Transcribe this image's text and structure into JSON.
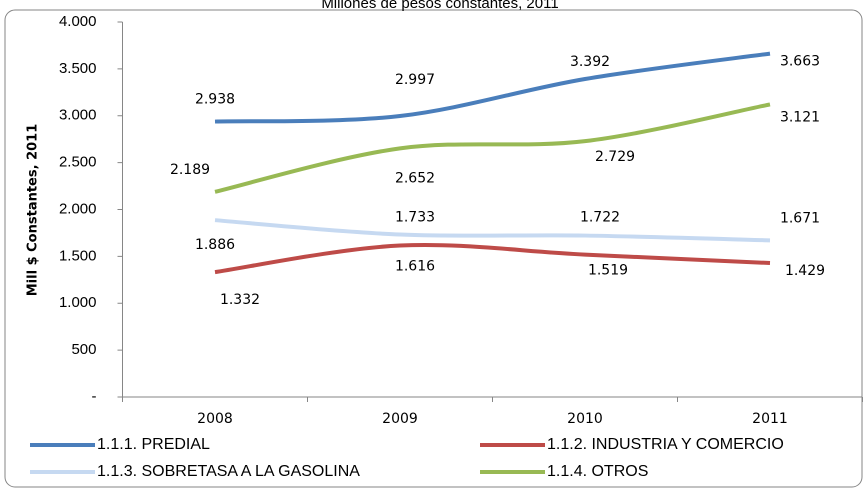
{
  "chart_data": {
    "type": "line",
    "title": "Millones de pesos constantes, 2011",
    "ylabel": "Mill $ Constantes, 2011",
    "categories": [
      "2008",
      "2009",
      "2010",
      "2011"
    ],
    "ylim": [
      0,
      4000
    ],
    "yticks": [
      {
        "value": 0,
        "label": "-"
      },
      500,
      {
        "value": 1000,
        "label": "1.000"
      },
      {
        "value": 1500,
        "label": "1.500"
      },
      {
        "value": 2000,
        "label": "2.000"
      },
      {
        "value": 2500,
        "label": "2.500"
      },
      {
        "value": 3000,
        "label": "3.000"
      },
      {
        "value": 3500,
        "label": "3.500"
      },
      {
        "value": 4000,
        "label": "4.000"
      }
    ],
    "legend": "bottom",
    "series": [
      {
        "name": "1.1.1. PREDIAL",
        "color": "#4a7ebb",
        "values": [
          2938,
          2997,
          3392,
          3663
        ],
        "value_labels": [
          "2.938",
          "2.997",
          "3.392",
          "3.663"
        ]
      },
      {
        "name": "1.1.2. INDUSTRIA Y COMERCIO",
        "color": "#be4b48",
        "values": [
          1332,
          1616,
          1519,
          1429
        ],
        "value_labels": [
          "1.332",
          "1.616",
          "1.519",
          "1.429"
        ]
      },
      {
        "name": "1.1.3. SOBRETASA A LA GASOLINA",
        "color": "#c6d9f1",
        "values": [
          1886,
          1733,
          1722,
          1671
        ],
        "value_labels": [
          "1.886",
          "1.733",
          "1.722",
          "1.671"
        ]
      },
      {
        "name": "1.1.4. OTROS",
        "color": "#98b954",
        "values": [
          2189,
          2652,
          2729,
          3121
        ],
        "value_labels": [
          "2.189",
          "2.652",
          "2.729",
          "3.121"
        ]
      }
    ]
  }
}
